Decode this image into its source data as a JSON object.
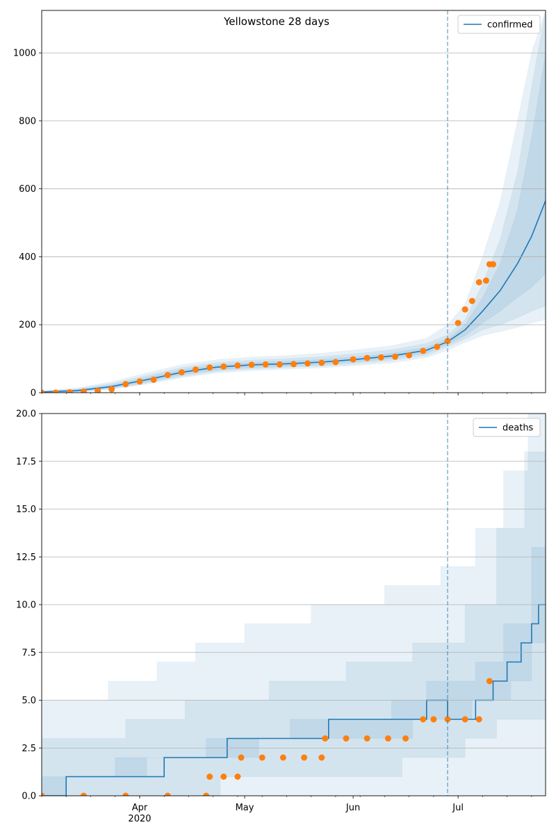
{
  "figure": {
    "title": "Yellowstone 28 days",
    "forecast_start": "2020-06-28",
    "x_tick_labels": [
      {
        "date": "2020-04-01",
        "label": "Apr",
        "sub": "2020"
      },
      {
        "date": "2020-05-01",
        "label": "May",
        "sub": ""
      },
      {
        "date": "2020-06-01",
        "label": "Jun",
        "sub": ""
      },
      {
        "date": "2020-07-01",
        "label": "Jul",
        "sub": ""
      }
    ],
    "xlim": [
      "2020-03-04",
      "2020-07-26"
    ]
  },
  "colors": {
    "median": "#1f77b4",
    "band": "#1f77b4",
    "observed": "#ff7f0e",
    "grid": "#b0b0b0",
    "forecast_line": "#1f77b4"
  },
  "chart_data": [
    {
      "type": "line",
      "legend": "confirmed",
      "legend_position": "top-right",
      "ylim": [
        0,
        1125
      ],
      "yticks": [
        0,
        200,
        400,
        600,
        800,
        1000
      ],
      "ytick_labels": [
        "0",
        "200",
        "400",
        "600",
        "800",
        "1000"
      ],
      "grid": "y",
      "median": {
        "x": [
          "2020-03-04",
          "2020-03-14",
          "2020-03-24",
          "2020-04-03",
          "2020-04-13",
          "2020-04-23",
          "2020-05-03",
          "2020-05-13",
          "2020-05-23",
          "2020-06-02",
          "2020-06-12",
          "2020-06-22",
          "2020-06-28",
          "2020-07-03",
          "2020-07-08",
          "2020-07-13",
          "2020-07-18",
          "2020-07-22",
          "2020-07-26"
        ],
        "y": [
          2,
          6,
          18,
          38,
          60,
          75,
          82,
          85,
          90,
          98,
          108,
          125,
          150,
          185,
          240,
          300,
          380,
          460,
          565
        ]
      },
      "bands": [
        {
          "lower": [
            0,
            1,
            10,
            25,
            44,
            58,
            65,
            69,
            73,
            80,
            88,
            103,
            125,
            148,
            168,
            180,
            192,
            205,
            215
          ],
          "upper": [
            6,
            14,
            32,
            58,
            82,
            97,
            105,
            109,
            116,
            126,
            138,
            160,
            200,
            260,
            400,
            560,
            800,
            1000,
            1125
          ]
        },
        {
          "lower": [
            0,
            2,
            12,
            28,
            48,
            63,
            70,
            74,
            78,
            86,
            95,
            110,
            135,
            158,
            185,
            200,
            220,
            240,
            255
          ],
          "upper": [
            4,
            11,
            27,
            51,
            74,
            89,
            96,
            100,
            106,
            115,
            126,
            145,
            170,
            215,
            320,
            450,
            650,
            900,
            1125
          ]
        },
        {
          "lower": [
            0,
            3,
            14,
            32,
            53,
            67,
            74,
            78,
            83,
            91,
            101,
            117,
            142,
            168,
            205,
            240,
            280,
            310,
            350
          ],
          "upper": [
            3,
            9,
            23,
            45,
            68,
            82,
            89,
            93,
            98,
            106,
            116,
            134,
            158,
            200,
            280,
            380,
            540,
            750,
            1000
          ]
        }
      ],
      "observed": {
        "x": [
          "2020-03-04",
          "2020-03-08",
          "2020-03-12",
          "2020-03-16",
          "2020-03-20",
          "2020-03-24",
          "2020-03-28",
          "2020-04-01",
          "2020-04-05",
          "2020-04-09",
          "2020-04-13",
          "2020-04-17",
          "2020-04-21",
          "2020-04-25",
          "2020-04-29",
          "2020-05-03",
          "2020-05-07",
          "2020-05-11",
          "2020-05-15",
          "2020-05-19",
          "2020-05-23",
          "2020-05-27",
          "2020-06-01",
          "2020-06-05",
          "2020-06-09",
          "2020-06-13",
          "2020-06-17",
          "2020-06-21",
          "2020-06-25",
          "2020-06-28",
          "2020-07-01",
          "2020-07-03",
          "2020-07-05",
          "2020-07-07",
          "2020-07-09",
          "2020-07-10",
          "2020-07-11"
        ],
        "y": [
          0,
          0,
          1,
          3,
          5,
          10,
          25,
          33,
          38,
          52,
          60,
          68,
          74,
          77,
          80,
          82,
          83,
          83,
          84,
          86,
          88,
          90,
          98,
          102,
          104,
          106,
          110,
          123,
          135,
          152,
          205,
          245,
          270,
          325,
          330,
          378,
          378
        ]
      }
    },
    {
      "type": "line",
      "legend": "deaths",
      "legend_position": "top-right",
      "ylim": [
        0,
        20
      ],
      "yticks": [
        0,
        2.5,
        5,
        7.5,
        10,
        12.5,
        15,
        17.5,
        20
      ],
      "ytick_labels": [
        "0.0",
        "2.5",
        "5.0",
        "7.5",
        "10.0",
        "12.5",
        "15.0",
        "17.5",
        "20.0"
      ],
      "grid": "y",
      "median": {
        "x": [
          "2020-03-04",
          "2020-03-11",
          "2020-03-11",
          "2020-04-08",
          "2020-04-08",
          "2020-04-26",
          "2020-04-26",
          "2020-05-25",
          "2020-05-25",
          "2020-06-22",
          "2020-06-22",
          "2020-06-28",
          "2020-06-28",
          "2020-07-06",
          "2020-07-06",
          "2020-07-11",
          "2020-07-11",
          "2020-07-15",
          "2020-07-15",
          "2020-07-19",
          "2020-07-19",
          "2020-07-22",
          "2020-07-22",
          "2020-07-24",
          "2020-07-24",
          "2020-07-26"
        ],
        "y": [
          0,
          0,
          1,
          1,
          2,
          2,
          3,
          3,
          4,
          4,
          5,
          5,
          4,
          4,
          5,
          5,
          6,
          6,
          7,
          7,
          8,
          8,
          9,
          9,
          10,
          10
        ]
      },
      "bands": [
        {
          "lower_steps": [
            [
              "2020-03-04",
              0
            ],
            [
              "2020-07-26",
              0
            ]
          ],
          "upper_steps": [
            [
              "2020-03-04",
              5
            ],
            [
              "2020-03-23",
              6
            ],
            [
              "2020-04-06",
              7
            ],
            [
              "2020-04-17",
              8
            ],
            [
              "2020-05-01",
              9
            ],
            [
              "2020-05-20",
              10
            ],
            [
              "2020-06-10",
              11
            ],
            [
              "2020-06-26",
              12
            ],
            [
              "2020-07-06",
              14
            ],
            [
              "2020-07-14",
              17
            ],
            [
              "2020-07-21",
              20
            ]
          ]
        },
        {
          "lower_steps": [
            [
              "2020-03-04",
              0
            ],
            [
              "2020-04-24",
              1
            ],
            [
              "2020-06-15",
              2
            ],
            [
              "2020-07-03",
              3
            ],
            [
              "2020-07-12",
              4
            ]
          ],
          "upper_steps": [
            [
              "2020-03-04",
              3
            ],
            [
              "2020-03-28",
              4
            ],
            [
              "2020-04-14",
              5
            ],
            [
              "2020-05-08",
              6
            ],
            [
              "2020-05-30",
              7
            ],
            [
              "2020-06-18",
              8
            ],
            [
              "2020-07-03",
              10
            ],
            [
              "2020-07-12",
              14
            ],
            [
              "2020-07-20",
              18
            ],
            [
              "2020-07-26",
              20
            ]
          ]
        },
        {
          "lower_steps": [
            [
              "2020-03-04",
              0
            ],
            [
              "2020-03-11",
              1
            ],
            [
              "2020-04-03",
              2
            ],
            [
              "2020-05-05",
              3
            ],
            [
              "2020-06-01",
              3
            ],
            [
              "2020-06-18",
              4
            ],
            [
              "2020-07-05",
              5
            ],
            [
              "2020-07-16",
              6
            ],
            [
              "2020-07-22",
              8
            ]
          ],
          "upper_steps": [
            [
              "2020-03-04",
              1
            ],
            [
              "2020-03-25",
              2
            ],
            [
              "2020-04-20",
              3
            ],
            [
              "2020-05-14",
              4
            ],
            [
              "2020-06-12",
              5
            ],
            [
              "2020-06-22",
              6
            ],
            [
              "2020-07-06",
              7
            ],
            [
              "2020-07-14",
              9
            ],
            [
              "2020-07-22",
              13
            ],
            [
              "2020-07-26",
              16
            ]
          ]
        }
      ],
      "observed": {
        "x": [
          "2020-03-04",
          "2020-03-16",
          "2020-03-28",
          "2020-04-09",
          "2020-04-20",
          "2020-04-21",
          "2020-04-25",
          "2020-04-29",
          "2020-04-30",
          "2020-05-06",
          "2020-05-12",
          "2020-05-18",
          "2020-05-23",
          "2020-05-24",
          "2020-05-30",
          "2020-06-05",
          "2020-06-11",
          "2020-06-16",
          "2020-06-21",
          "2020-06-24",
          "2020-06-28",
          "2020-07-03",
          "2020-07-07",
          "2020-07-10"
        ],
        "y": [
          0,
          0,
          0,
          0,
          0,
          1,
          1,
          1,
          2,
          2,
          2,
          2,
          2,
          3,
          3,
          3,
          3,
          3,
          4,
          4,
          4,
          4,
          4,
          6
        ]
      }
    }
  ]
}
